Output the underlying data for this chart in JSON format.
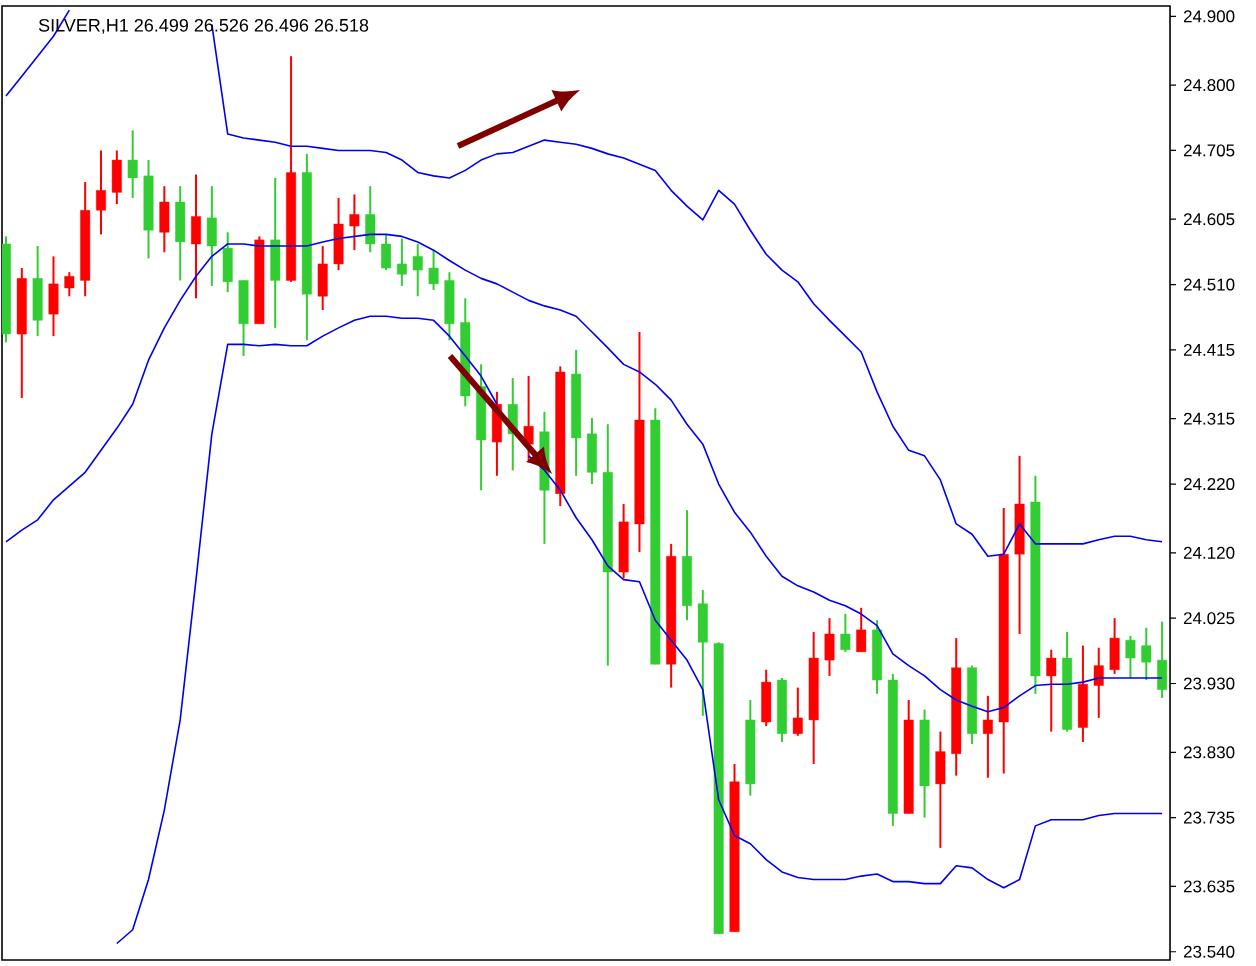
{
  "chart_data": {
    "type": "candlestick",
    "title": "SILVER,H1  26.499 26.526 26.496 26.518",
    "categories": [
      null,
      null,
      null,
      null,
      null,
      null,
      null,
      null,
      null,
      null,
      null,
      null,
      null,
      null,
      null,
      null,
      null,
      null,
      null,
      null,
      null,
      null,
      null,
      null,
      null,
      null,
      null,
      null,
      null,
      null,
      null,
      null,
      null,
      null,
      null,
      null,
      null,
      null,
      null,
      null,
      null,
      null,
      null,
      null,
      null,
      null,
      null,
      null,
      null,
      null,
      null,
      null,
      null,
      null,
      null,
      null,
      null,
      null,
      null,
      null,
      null,
      null,
      null,
      null,
      null,
      null,
      null,
      null,
      null,
      null,
      null,
      null,
      null,
      null
    ],
    "ohlc": [
      [
        24.438,
        24.58,
        24.426,
        24.569
      ],
      [
        24.519,
        24.534,
        24.345,
        24.438
      ],
      [
        24.458,
        24.566,
        24.435,
        24.519
      ],
      [
        24.511,
        24.551,
        24.435,
        24.467
      ],
      [
        24.522,
        24.528,
        24.493,
        24.505
      ],
      [
        24.618,
        24.659,
        24.493,
        24.516
      ],
      [
        24.647,
        24.705,
        24.583,
        24.618
      ],
      [
        24.691,
        24.705,
        24.627,
        24.644
      ],
      [
        24.665,
        24.734,
        24.636,
        24.691
      ],
      [
        24.589,
        24.691,
        24.548,
        24.668
      ],
      [
        24.63,
        24.653,
        24.557,
        24.586
      ],
      [
        24.572,
        24.653,
        24.516,
        24.63
      ],
      [
        24.609,
        24.67,
        24.49,
        24.569
      ],
      [
        24.566,
        24.653,
        24.508,
        24.607
      ],
      [
        24.514,
        24.586,
        24.499,
        24.563
      ],
      [
        24.453,
        24.516,
        24.406,
        24.516
      ],
      [
        24.575,
        24.58,
        24.453,
        24.453
      ],
      [
        24.516,
        24.665,
        24.447,
        24.575
      ],
      [
        24.673,
        24.842,
        24.514,
        24.516
      ],
      [
        24.496,
        24.7,
        24.429,
        24.673
      ],
      [
        24.54,
        24.566,
        24.473,
        24.493
      ],
      [
        24.598,
        24.636,
        24.531,
        24.54
      ],
      [
        24.612,
        24.641,
        24.56,
        24.595
      ],
      [
        24.569,
        24.653,
        24.557,
        24.612
      ],
      [
        24.534,
        24.583,
        24.531,
        24.569
      ],
      [
        24.525,
        24.577,
        24.508,
        24.54
      ],
      [
        24.531,
        24.569,
        24.493,
        24.551
      ],
      [
        24.511,
        24.56,
        24.502,
        24.534
      ],
      [
        24.453,
        24.528,
        24.429,
        24.516
      ],
      [
        24.348,
        24.49,
        24.333,
        24.455
      ],
      [
        24.284,
        24.394,
        24.211,
        24.362
      ],
      [
        24.336,
        24.354,
        24.232,
        24.281
      ],
      [
        24.293,
        24.374,
        24.24,
        24.336
      ],
      [
        24.304,
        24.377,
        24.255,
        24.278
      ],
      [
        24.211,
        24.325,
        24.133,
        24.296
      ],
      [
        24.383,
        24.391,
        24.188,
        24.206
      ],
      [
        24.287,
        24.415,
        24.232,
        24.38
      ],
      [
        24.237,
        24.316,
        24.22,
        24.293
      ],
      [
        24.092,
        24.307,
        23.956,
        24.237
      ],
      [
        24.165,
        24.191,
        24.083,
        24.092
      ],
      [
        24.313,
        24.441,
        24.121,
        24.162
      ],
      [
        23.958,
        24.33,
        23.958,
        24.313
      ],
      [
        24.115,
        24.133,
        23.924,
        23.958
      ],
      [
        24.043,
        24.182,
        24.022,
        24.115
      ],
      [
        23.99,
        24.066,
        23.883,
        24.046
      ],
      [
        23.566,
        23.99,
        23.566,
        23.988
      ],
      [
        23.787,
        23.813,
        23.569,
        23.569
      ],
      [
        23.784,
        23.906,
        23.767,
        23.877
      ],
      [
        23.932,
        23.95,
        23.868,
        23.874
      ],
      [
        23.857,
        23.938,
        23.845,
        23.935
      ],
      [
        23.88,
        23.924,
        23.854,
        23.857
      ],
      [
        23.967,
        24.005,
        23.813,
        23.877
      ],
      [
        24.002,
        24.025,
        23.941,
        23.964
      ],
      [
        23.979,
        24.031,
        23.976,
        24.002
      ],
      [
        24.008,
        24.04,
        23.976,
        23.976
      ],
      [
        23.935,
        24.022,
        23.915,
        24.008
      ],
      [
        23.741,
        23.944,
        23.723,
        23.935
      ],
      [
        23.877,
        23.906,
        23.741,
        23.741
      ],
      [
        23.781,
        23.892,
        23.735,
        23.877
      ],
      [
        23.831,
        23.86,
        23.691,
        23.784
      ],
      [
        23.953,
        23.996,
        23.796,
        23.828
      ],
      [
        23.857,
        23.956,
        23.842,
        23.953
      ],
      [
        23.877,
        23.912,
        23.793,
        23.857
      ],
      [
        24.118,
        24.185,
        23.799,
        23.874
      ],
      [
        24.191,
        24.261,
        24.002,
        24.118
      ],
      [
        23.941,
        24.232,
        23.915,
        24.194
      ],
      [
        23.967,
        23.979,
        23.86,
        23.941
      ],
      [
        23.863,
        24.005,
        23.86,
        23.967
      ],
      [
        23.929,
        23.985,
        23.845,
        23.866
      ],
      [
        23.956,
        23.982,
        23.88,
        23.927
      ],
      [
        23.996,
        24.025,
        23.944,
        23.95
      ],
      [
        23.967,
        23.999,
        23.938,
        23.993
      ],
      [
        23.961,
        24.011,
        23.935,
        23.985
      ],
      [
        23.921,
        24.02,
        23.909,
        23.964
      ]
    ],
    "colors": [
      "#32cd32",
      "#ff0000",
      "#32cd32",
      "#ff0000",
      "#ff0000",
      "#ff0000",
      "#ff0000",
      "#ff0000",
      "#32cd32",
      "#32cd32",
      "#ff0000",
      "#32cd32",
      "#ff0000",
      "#32cd32",
      "#32cd32",
      "#32cd32",
      "#ff0000",
      "#32cd32",
      "#ff0000",
      "#32cd32",
      "#ff0000",
      "#ff0000",
      "#ff0000",
      "#32cd32",
      "#32cd32",
      "#32cd32",
      "#32cd32",
      "#32cd32",
      "#32cd32",
      "#32cd32",
      "#32cd32",
      "#ff0000",
      "#32cd32",
      "#ff0000",
      "#32cd32",
      "#ff0000",
      "#32cd32",
      "#32cd32",
      "#32cd32",
      "#ff0000",
      "#ff0000",
      "#32cd32",
      "#ff0000",
      "#32cd32",
      "#32cd32",
      "#32cd32",
      "#ff0000",
      "#32cd32",
      "#ff0000",
      "#32cd32",
      "#ff0000",
      "#ff0000",
      "#ff0000",
      "#32cd32",
      "#ff0000",
      "#32cd32",
      "#32cd32",
      "#ff0000",
      "#32cd32",
      "#ff0000",
      "#ff0000",
      "#32cd32",
      "#ff0000",
      "#ff0000",
      "#ff0000",
      "#32cd32",
      "#ff0000",
      "#32cd32",
      "#ff0000",
      "#ff0000",
      "#ff0000",
      "#32cd32",
      "#32cd32",
      "#32cd32"
    ],
    "series": [
      {
        "type": "line",
        "color": "#0000ee",
        "values": [
          24.784,
          24.813,
          24.842,
          24.871,
          24.909,
          null,
          null,
          null,
          null,
          null,
          null,
          null,
          null,
          24.888,
          24.729,
          24.723,
          24.72,
          24.717,
          24.711,
          24.711,
          24.708,
          24.705,
          24.705,
          24.705,
          24.702,
          24.691,
          24.673,
          24.668,
          24.665,
          24.676,
          24.691,
          24.7,
          24.702,
          24.711,
          24.72,
          24.717,
          24.714,
          24.708,
          24.7,
          24.694,
          24.685,
          24.676,
          24.647,
          24.624,
          24.604,
          24.647,
          24.627,
          24.589,
          24.554,
          24.531,
          24.514,
          24.482,
          24.458,
          24.435,
          24.412,
          24.354,
          24.304,
          24.269,
          24.261,
          24.226,
          24.162,
          24.147,
          24.115,
          24.118,
          24.162,
          24.133,
          24.133,
          24.133,
          24.133,
          24.139,
          24.144,
          24.144,
          24.139,
          24.136
        ]
      },
      {
        "type": "line",
        "color": "#0000ee",
        "values": [
          24.136,
          24.153,
          24.168,
          24.197,
          24.217,
          24.237,
          24.269,
          24.301,
          24.336,
          24.4,
          24.447,
          24.487,
          24.522,
          24.551,
          24.569,
          24.569,
          24.566,
          24.566,
          24.566,
          24.566,
          24.572,
          24.577,
          24.58,
          24.583,
          24.583,
          24.58,
          24.572,
          24.56,
          24.545,
          24.531,
          24.519,
          24.511,
          24.499,
          24.487,
          24.479,
          24.473,
          24.464,
          24.441,
          24.418,
          24.394,
          24.383,
          24.365,
          24.342,
          24.307,
          24.278,
          24.22,
          24.179,
          24.15,
          24.115,
          24.086,
          24.072,
          24.063,
          24.051,
          24.043,
          24.031,
          24.014,
          23.973,
          23.956,
          23.941,
          23.921,
          23.906,
          23.897,
          23.889,
          23.895,
          23.912,
          23.927,
          23.929,
          23.929,
          23.932,
          23.938,
          23.938,
          23.938,
          23.938,
          23.938
        ]
      },
      {
        "type": "line",
        "color": "#0000ee",
        "values": [
          null,
          null,
          null,
          null,
          null,
          null,
          null,
          23.552,
          23.572,
          23.645,
          23.746,
          23.877,
          24.081,
          24.293,
          24.423,
          24.423,
          24.421,
          24.423,
          24.421,
          24.421,
          24.435,
          24.447,
          24.458,
          24.464,
          24.464,
          24.461,
          24.461,
          24.458,
          24.435,
          24.406,
          24.377,
          24.336,
          null,
          24.261,
          24.24,
          24.211,
          24.171,
          24.139,
          24.101,
          24.081,
          24.078,
          24.022,
          23.993,
          23.964,
          23.921,
          23.761,
          23.709,
          23.697,
          23.674,
          23.656,
          23.648,
          23.645,
          23.645,
          23.645,
          23.65,
          23.653,
          23.642,
          23.642,
          23.639,
          23.639,
          23.665,
          23.662,
          23.645,
          23.633,
          23.645,
          23.723,
          23.732,
          23.732,
          23.732,
          23.738,
          23.741,
          23.741,
          23.741,
          23.741
        ]
      }
    ],
    "ylim": [
      23.528,
      24.915
    ],
    "yticks": [
      {
        "value": 24.9,
        "label": "24.900"
      },
      {
        "value": 24.8,
        "label": "24.800"
      },
      {
        "value": 24.705,
        "label": "24.705"
      },
      {
        "value": 24.605,
        "label": "24.605"
      },
      {
        "value": 24.51,
        "label": "24.510"
      },
      {
        "value": 24.415,
        "label": "24.415"
      },
      {
        "value": 24.315,
        "label": "24.315"
      },
      {
        "value": 24.22,
        "label": "24.220"
      },
      {
        "value": 24.12,
        "label": "24.120"
      },
      {
        "value": 24.025,
        "label": "24.025"
      },
      {
        "value": 23.93,
        "label": "23.930"
      },
      {
        "value": 23.83,
        "label": "23.830"
      },
      {
        "value": 23.735,
        "label": "23.735"
      },
      {
        "value": 23.635,
        "label": "23.635"
      },
      {
        "value": 23.54,
        "label": "23.540"
      }
    ],
    "tick_labels": "y"
  }
}
